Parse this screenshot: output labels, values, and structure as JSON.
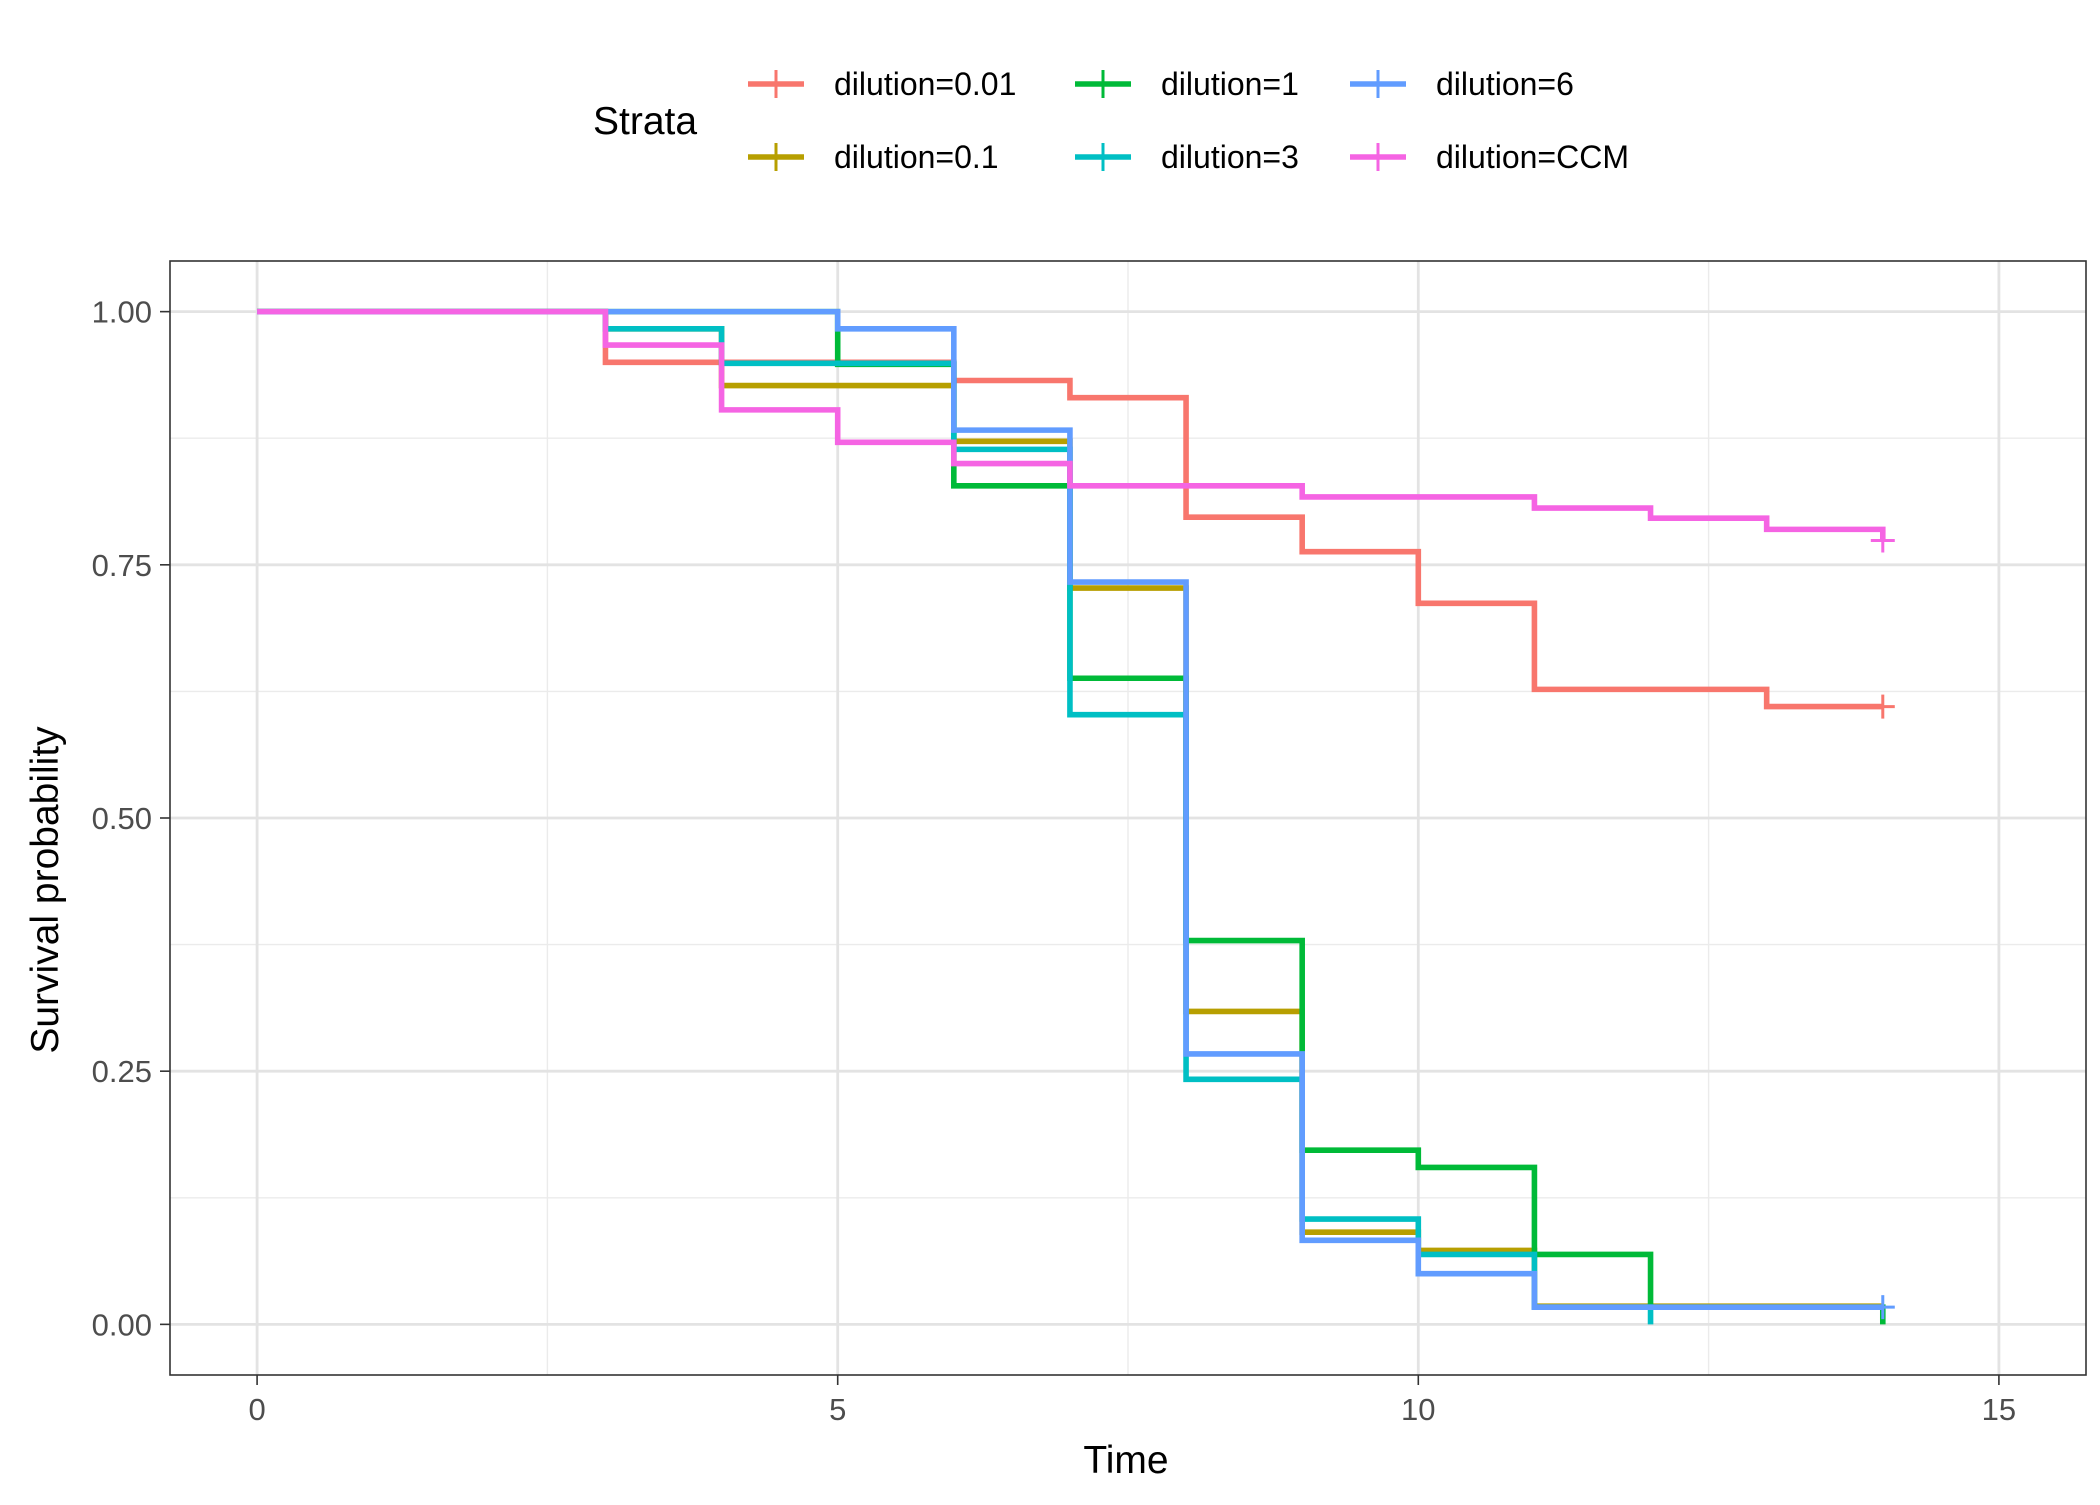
{
  "chart_data": {
    "type": "line",
    "subtype": "survival-step",
    "xlabel": "Time",
    "ylabel": "Survival probability",
    "xlim": [
      -0.75,
      15.75
    ],
    "ylim": [
      -0.05,
      1.05
    ],
    "xticks": [
      0,
      5,
      10,
      15
    ],
    "xtick_labels": [
      "0",
      "5",
      "10",
      "15"
    ],
    "yticks": [
      0,
      0.25,
      0.5,
      0.75,
      1.0
    ],
    "ytick_labels": [
      "0.00",
      "0.25",
      "0.50",
      "0.75",
      "1.00"
    ],
    "grid": true,
    "legend": {
      "title": "Strata",
      "position": "top"
    },
    "series": [
      {
        "name": "dilution=0.01",
        "color": "#F8766D",
        "steps": [
          [
            0,
            1.0
          ],
          [
            3,
            0.95
          ],
          [
            6,
            0.932
          ],
          [
            7,
            0.915
          ],
          [
            8,
            0.797
          ],
          [
            9,
            0.763
          ],
          [
            10,
            0.712
          ],
          [
            11,
            0.627
          ],
          [
            13,
            0.61
          ],
          [
            14,
            0.61
          ]
        ],
        "censor": [
          [
            14,
            0.61
          ]
        ]
      },
      {
        "name": "dilution=0.1",
        "color": "#B79F00",
        "steps": [
          [
            0,
            1.0
          ],
          [
            3,
            0.983
          ],
          [
            4,
            0.927
          ],
          [
            6,
            0.872
          ],
          [
            7,
            0.727
          ],
          [
            8,
            0.309
          ],
          [
            9,
            0.091
          ],
          [
            10,
            0.073
          ],
          [
            11,
            0.018
          ],
          [
            14,
            0.018
          ]
        ],
        "censor": []
      },
      {
        "name": "dilution=1",
        "color": "#00BA38",
        "steps": [
          [
            0,
            1.0
          ],
          [
            5,
            0.948
          ],
          [
            6,
            0.828
          ],
          [
            7,
            0.638
          ],
          [
            8,
            0.379
          ],
          [
            9,
            0.172
          ],
          [
            10,
            0.155
          ],
          [
            11,
            0.069
          ],
          [
            12,
            0.017
          ],
          [
            14,
            0.0
          ]
        ],
        "censor": []
      },
      {
        "name": "dilution=3",
        "color": "#00BFC4",
        "steps": [
          [
            0,
            1.0
          ],
          [
            3,
            0.983
          ],
          [
            4,
            0.949
          ],
          [
            6,
            0.864
          ],
          [
            7,
            0.602
          ],
          [
            8,
            0.242
          ],
          [
            9,
            0.104
          ],
          [
            10,
            0.069
          ],
          [
            11,
            0.017
          ],
          [
            12,
            0.0
          ]
        ],
        "censor": []
      },
      {
        "name": "dilution=6",
        "color": "#619CFF",
        "steps": [
          [
            0,
            1.0
          ],
          [
            5,
            0.983
          ],
          [
            6,
            0.883
          ],
          [
            7,
            0.733
          ],
          [
            8,
            0.267
          ],
          [
            9,
            0.083
          ],
          [
            10,
            0.05
          ],
          [
            11,
            0.017
          ],
          [
            14,
            0.017
          ]
        ],
        "censor": [
          [
            14,
            0.017
          ]
        ]
      },
      {
        "name": "dilution=CCM",
        "color": "#F564E3",
        "steps": [
          [
            0,
            1.0
          ],
          [
            3,
            0.967
          ],
          [
            4,
            0.903
          ],
          [
            5,
            0.871
          ],
          [
            6,
            0.85
          ],
          [
            7,
            0.828
          ],
          [
            9,
            0.817
          ],
          [
            11,
            0.806
          ],
          [
            12,
            0.796
          ],
          [
            13,
            0.785
          ],
          [
            14,
            0.774
          ]
        ],
        "censor": [
          [
            14,
            0.774
          ]
        ]
      }
    ]
  }
}
